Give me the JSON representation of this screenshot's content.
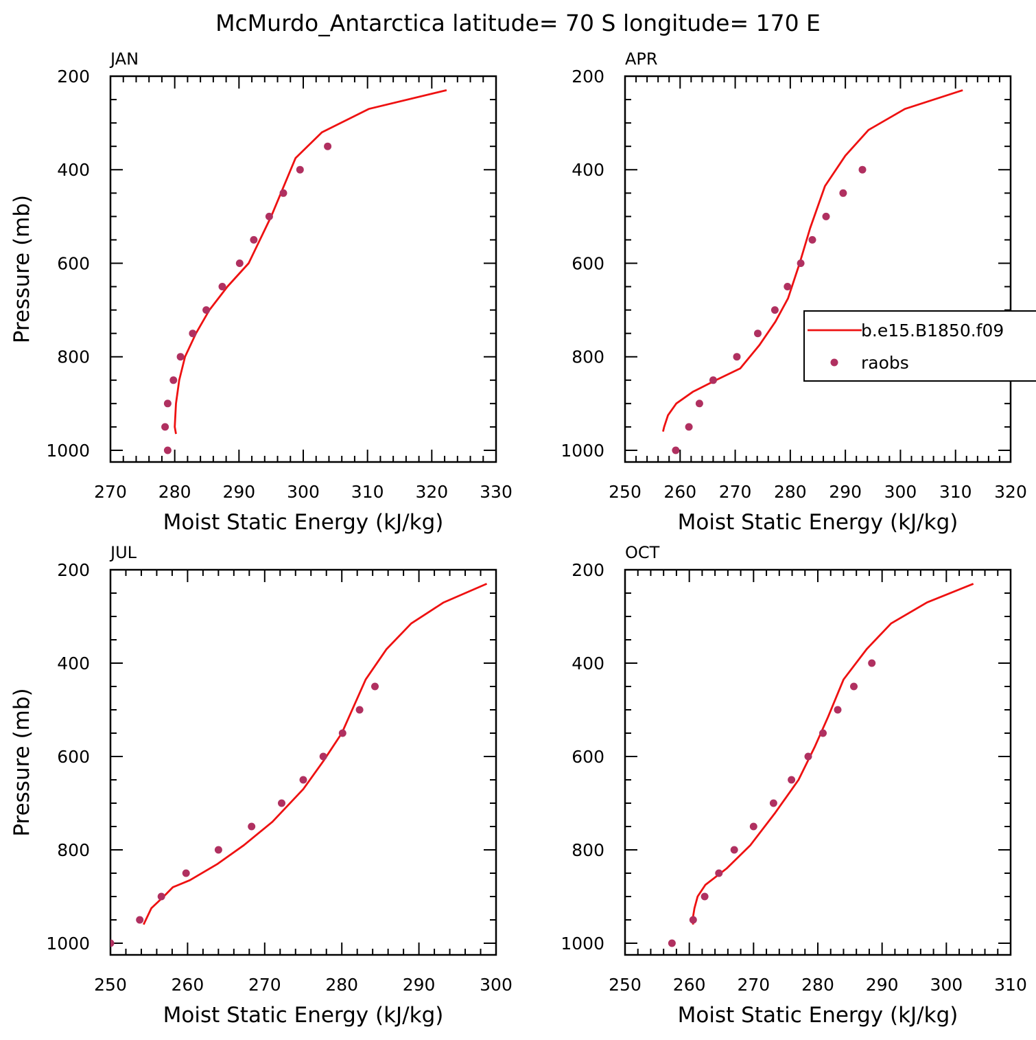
{
  "title": "McMurdo_Antarctica  latitude= 70 S longitude= 170 E",
  "colors": {
    "model_line": "#ee1111",
    "obs_marker": "#b03060",
    "axis": "#000000"
  },
  "legend": {
    "entries": [
      {
        "label": "b.e15.B1850.f09",
        "style": "line"
      },
      {
        "label": "raobs",
        "style": "marker"
      }
    ]
  },
  "chart_data": [
    {
      "type": "line",
      "panel": "JAN",
      "xlabel": "Moist Static Energy (kJ/kg)",
      "ylabel": "Pressure (mb)",
      "xlim": [
        270,
        330
      ],
      "ylim": [
        1025,
        200
      ],
      "y_inverted": true,
      "x_ticks": [
        270,
        280,
        290,
        300,
        310,
        320,
        330
      ],
      "y_ticks": [
        200,
        400,
        600,
        800,
        1000
      ],
      "series": [
        {
          "name": "b.e15.B1850.f09",
          "kind": "line",
          "x": [
            280.2,
            280.0,
            280.2,
            280.7,
            281.6,
            283.3,
            285.4,
            288.2,
            291.5,
            295.0,
            298.8,
            302.9,
            310.2,
            322.3
          ],
          "y": [
            965,
            950,
            900,
            850,
            800,
            750,
            700,
            650,
            600,
            500,
            375,
            320,
            270,
            230
          ]
        },
        {
          "name": "raobs",
          "kind": "scatter",
          "x": [
            278.9,
            278.5,
            278.9,
            279.8,
            280.9,
            282.8,
            284.9,
            287.4,
            290.1,
            292.3,
            294.7,
            296.9,
            299.5,
            303.8
          ],
          "y": [
            1000,
            950,
            900,
            850,
            800,
            750,
            700,
            650,
            600,
            550,
            500,
            450,
            400,
            350
          ]
        }
      ]
    },
    {
      "type": "line",
      "panel": "APR",
      "xlabel": "Moist Static Energy (kJ/kg)",
      "ylabel": "",
      "xlim": [
        250,
        320
      ],
      "ylim": [
        1025,
        200
      ],
      "y_inverted": true,
      "x_ticks": [
        250,
        260,
        270,
        280,
        290,
        300,
        310,
        320
      ],
      "y_ticks": [
        200,
        400,
        600,
        800,
        1000
      ],
      "series": [
        {
          "name": "b.e15.B1850.f09",
          "kind": "line",
          "x": [
            256.9,
            257.1,
            257.8,
            259.3,
            262.3,
            266.5,
            270.9,
            274.4,
            277.3,
            279.6,
            281.7,
            283.6,
            286.3,
            290.0,
            294.2,
            300.8,
            311.3
          ],
          "y": [
            960,
            950,
            925,
            900,
            875,
            850,
            825,
            775,
            725,
            675,
            600,
            525,
            435,
            370,
            315,
            270,
            230
          ]
        },
        {
          "name": "raobs",
          "kind": "scatter",
          "x": [
            259.2,
            261.6,
            263.5,
            266.0,
            270.3,
            274.1,
            277.2,
            279.5,
            281.9,
            284.0,
            286.5,
            289.6,
            293.1
          ],
          "y": [
            1000,
            950,
            900,
            850,
            800,
            750,
            700,
            650,
            600,
            550,
            500,
            450,
            400
          ]
        }
      ]
    },
    {
      "type": "line",
      "panel": "JUL",
      "xlabel": "Moist Static Energy (kJ/kg)",
      "ylabel": "Pressure (mb)",
      "xlim": [
        250,
        300
      ],
      "ylim": [
        1025,
        200
      ],
      "y_inverted": true,
      "x_ticks": [
        250,
        260,
        270,
        280,
        290,
        300
      ],
      "y_ticks": [
        200,
        400,
        600,
        800,
        1000
      ],
      "series": [
        {
          "name": "b.e15.B1850.f09",
          "kind": "line",
          "x": [
            254.3,
            255.3,
            256.9,
            258.1,
            260.3,
            263.9,
            267.3,
            271.0,
            275.0,
            277.6,
            280.0,
            283.1,
            285.8,
            289.0,
            293.2,
            298.8
          ],
          "y": [
            960,
            925,
            900,
            880,
            865,
            830,
            790,
            740,
            670,
            610,
            550,
            435,
            370,
            315,
            270,
            230
          ]
        },
        {
          "name": "raobs",
          "kind": "scatter",
          "x": [
            250.0,
            253.8,
            256.6,
            259.8,
            264.0,
            268.3,
            272.2,
            275.0,
            277.6,
            280.1,
            282.3,
            284.3
          ],
          "y": [
            1000,
            950,
            900,
            850,
            800,
            750,
            700,
            650,
            600,
            550,
            500,
            450
          ]
        }
      ]
    },
    {
      "type": "line",
      "panel": "OCT",
      "xlabel": "Moist Static Energy (kJ/kg)",
      "ylabel": "",
      "xlim": [
        250,
        310
      ],
      "ylim": [
        1025,
        200
      ],
      "y_inverted": true,
      "x_ticks": [
        250,
        260,
        270,
        280,
        290,
        300,
        310
      ],
      "y_ticks": [
        200,
        400,
        600,
        800,
        1000
      ],
      "series": [
        {
          "name": "b.e15.B1850.f09",
          "kind": "line",
          "x": [
            260.6,
            260.5,
            260.8,
            261.3,
            262.5,
            265.8,
            269.5,
            273.4,
            277.0,
            279.5,
            281.6,
            284.0,
            287.6,
            291.4,
            297.0,
            304.2
          ],
          "y": [
            960,
            950,
            925,
            900,
            875,
            840,
            790,
            720,
            650,
            580,
            515,
            435,
            370,
            315,
            270,
            230
          ]
        },
        {
          "name": "raobs",
          "kind": "scatter",
          "x": [
            257.3,
            260.6,
            262.4,
            264.6,
            267.0,
            270.0,
            273.1,
            275.9,
            278.5,
            280.8,
            283.1,
            285.6,
            288.4
          ],
          "y": [
            1000,
            950,
            900,
            850,
            800,
            750,
            700,
            650,
            600,
            550,
            500,
            450,
            400
          ]
        }
      ]
    }
  ]
}
